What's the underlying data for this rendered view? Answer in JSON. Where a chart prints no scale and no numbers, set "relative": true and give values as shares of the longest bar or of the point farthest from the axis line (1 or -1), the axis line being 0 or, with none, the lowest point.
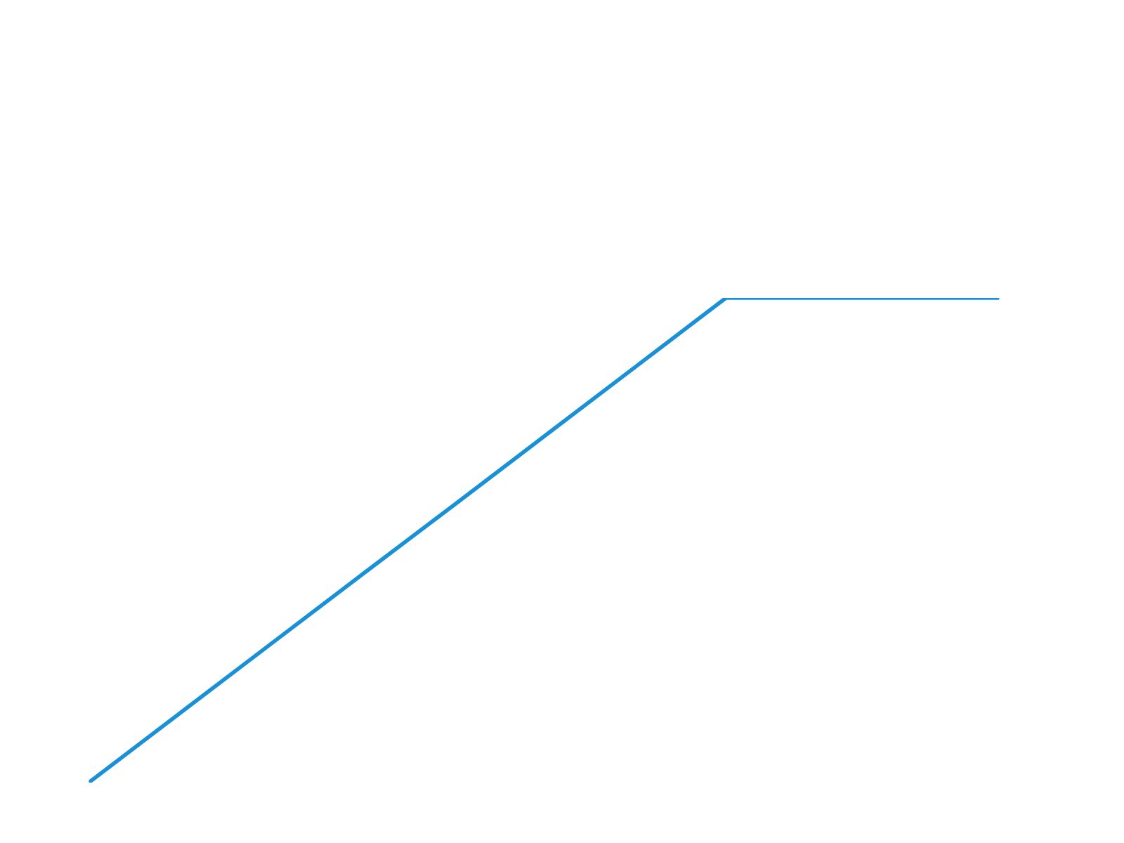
{
  "chart_data": {
    "type": "line",
    "relative": true,
    "categories": [
      null,
      null,
      null,
      null,
      null,
      null,
      null,
      null,
      null,
      null,
      null
    ],
    "series": [
      {
        "color": "#1a91d6",
        "values": [
          0,
          0.143,
          0.286,
          0.429,
          0.571,
          0.714,
          0.857,
          1,
          1,
          1,
          1
        ]
      }
    ],
    "grid": false,
    "legend": false,
    "marker": "none",
    "line_style": "solid"
  }
}
